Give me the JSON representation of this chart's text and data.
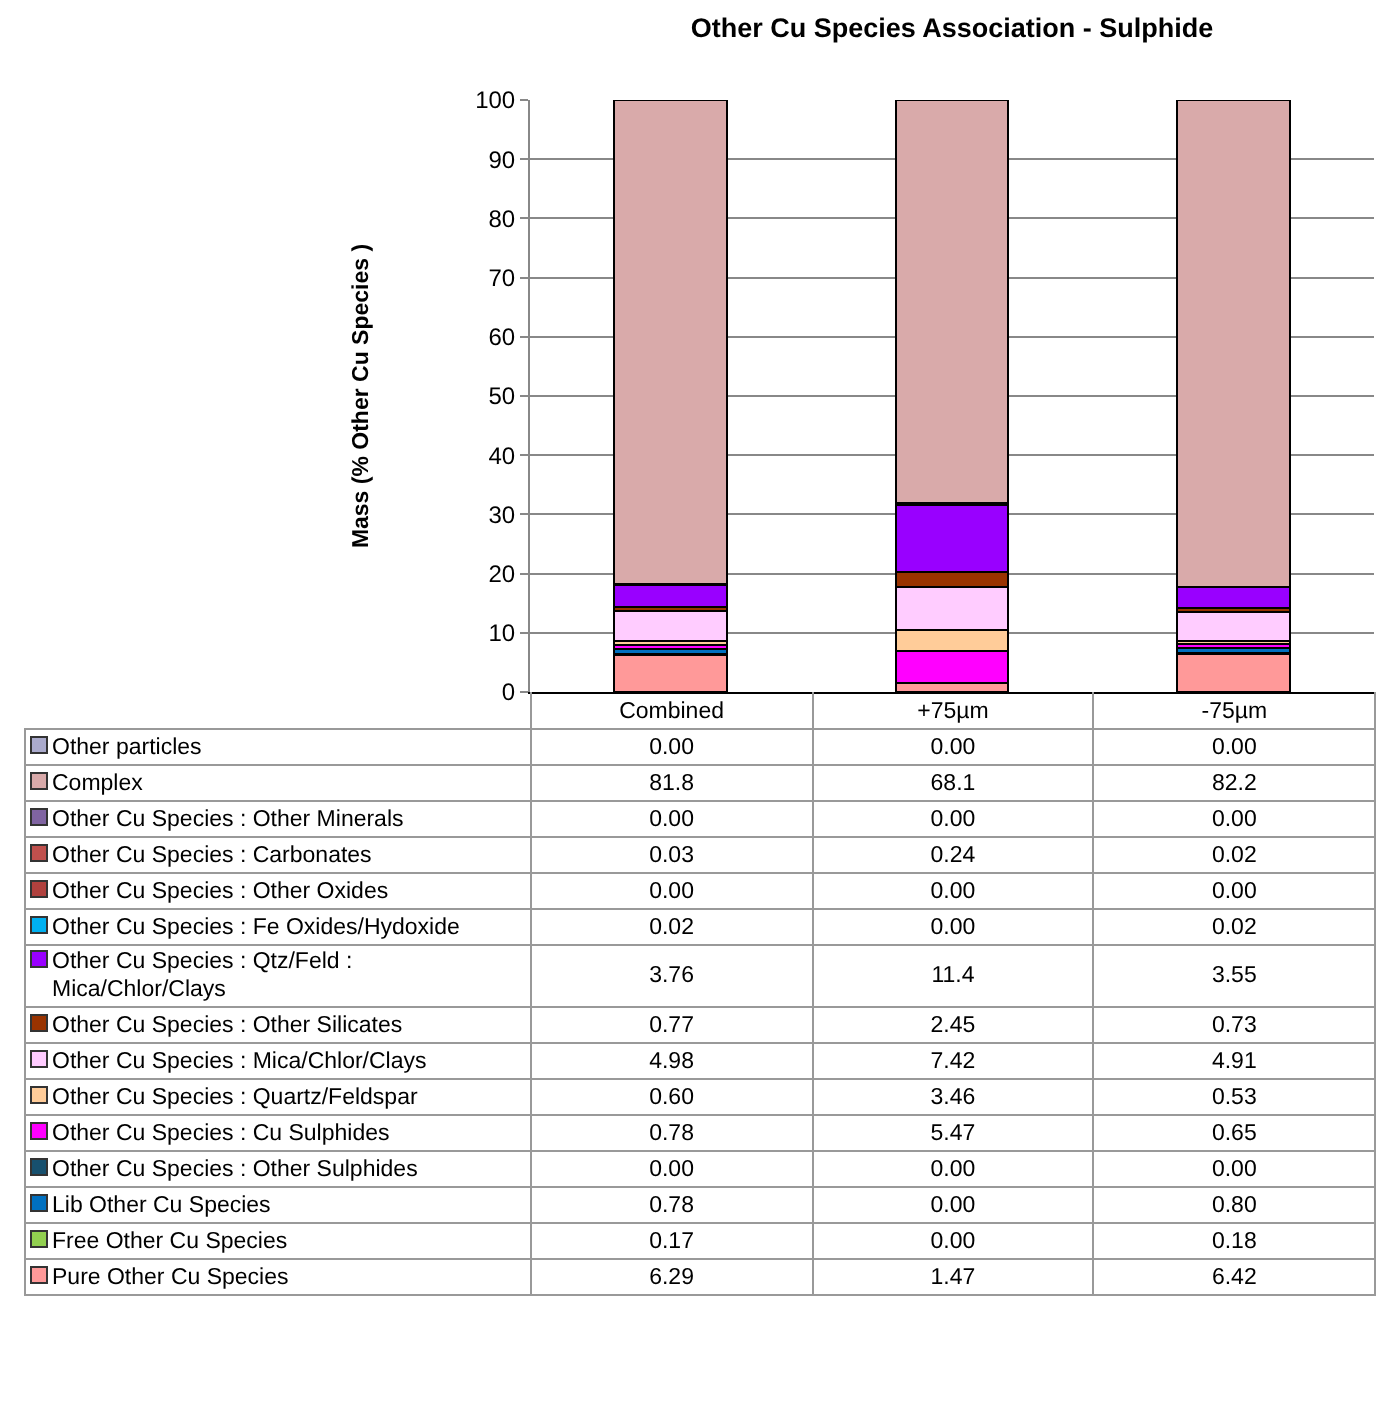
{
  "chart_data": {
    "type": "bar",
    "stacked": true,
    "title": "Other Cu Species Association - Sulphide",
    "ylabel": "Mass (% Other Cu Species )",
    "categories": [
      "Combined",
      "+75µm",
      "-75µm"
    ],
    "ylim": [
      0,
      100
    ],
    "yticks": [
      0,
      10,
      20,
      30,
      40,
      50,
      60,
      70,
      80,
      90,
      100
    ],
    "grid": "y",
    "legend": "bottom",
    "series": [
      {
        "name": "Pure Other Cu Species",
        "color": "#ff9999",
        "values": [
          6.29,
          1.47,
          6.42
        ],
        "value_labels": [
          "6.29",
          "1.47",
          "6.42"
        ]
      },
      {
        "name": "Free Other Cu Species",
        "color": "#92d050",
        "values": [
          0.17,
          0.0,
          0.18
        ],
        "value_labels": [
          "0.17",
          "0.00",
          "0.18"
        ]
      },
      {
        "name": "Lib Other Cu Species",
        "color": "#0070c0",
        "values": [
          0.78,
          0.0,
          0.8
        ],
        "value_labels": [
          "0.78",
          "0.00",
          "0.80"
        ]
      },
      {
        "name": "Other Cu Species : Other Sulphides",
        "color": "#17506e",
        "values": [
          0.0,
          0.0,
          0.0
        ],
        "value_labels": [
          "0.00",
          "0.00",
          "0.00"
        ]
      },
      {
        "name": "Other Cu Species : Cu Sulphides",
        "color": "#ff00ff",
        "values": [
          0.78,
          5.47,
          0.65
        ],
        "value_labels": [
          "0.78",
          "5.47",
          "0.65"
        ]
      },
      {
        "name": "Other Cu Species : Quartz/Feldspar",
        "color": "#ffcc99",
        "values": [
          0.6,
          3.46,
          0.53
        ],
        "value_labels": [
          "0.60",
          "3.46",
          "0.53"
        ]
      },
      {
        "name": "Other Cu Species : Mica/Chlor/Clays",
        "color": "#ffccff",
        "values": [
          4.98,
          7.42,
          4.91
        ],
        "value_labels": [
          "4.98",
          "7.42",
          "4.91"
        ]
      },
      {
        "name": "Other Cu Species : Other Silicates",
        "color": "#993300",
        "values": [
          0.77,
          2.45,
          0.73
        ],
        "value_labels": [
          "0.77",
          "2.45",
          "0.73"
        ]
      },
      {
        "name": "Other Cu Species : Qtz/Feld : Mica/Chlor/Clays",
        "color": "#9900ff",
        "values": [
          3.76,
          11.4,
          3.55
        ],
        "value_labels": [
          "3.76",
          "11.4",
          "3.55"
        ]
      },
      {
        "name": "Other Cu Species : Fe Oxides/Hydoxide",
        "color": "#00b0f0",
        "values": [
          0.02,
          0.0,
          0.02
        ],
        "value_labels": [
          "0.02",
          "0.00",
          "0.02"
        ]
      },
      {
        "name": "Other Cu Species : Other Oxides",
        "color": "#b0413e",
        "values": [
          0.0,
          0.0,
          0.0
        ],
        "value_labels": [
          "0.00",
          "0.00",
          "0.00"
        ]
      },
      {
        "name": "Other Cu Species : Carbonates",
        "color": "#c0504d",
        "values": [
          0.03,
          0.24,
          0.02
        ],
        "value_labels": [
          "0.03",
          "0.24",
          "0.02"
        ]
      },
      {
        "name": "Other Cu Species : Other Minerals",
        "color": "#8064a2",
        "values": [
          0.0,
          0.0,
          0.0
        ],
        "value_labels": [
          "0.00",
          "0.00",
          "0.00"
        ]
      },
      {
        "name": "Complex",
        "color": "#d9aaaa",
        "values": [
          81.8,
          68.1,
          82.2
        ],
        "value_labels": [
          "81.8",
          "68.1",
          "82.2"
        ]
      },
      {
        "name": "Other particles",
        "color": "#aaaacc",
        "values": [
          0.0,
          0.0,
          0.0
        ],
        "value_labels": [
          "0.00",
          "0.00",
          "0.00"
        ]
      }
    ]
  }
}
